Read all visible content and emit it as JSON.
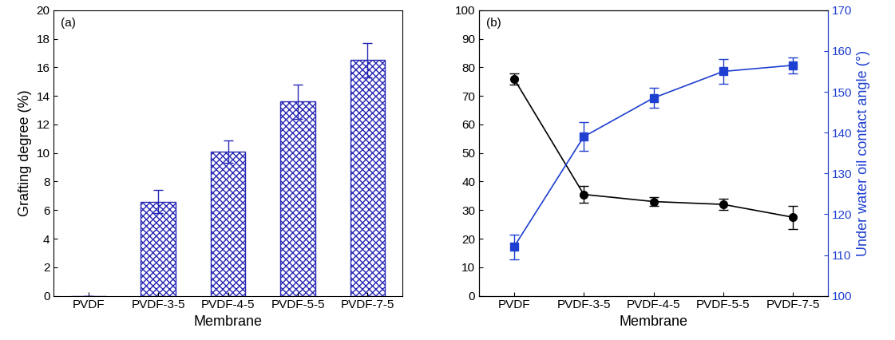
{
  "chart_data": [
    {
      "type": "bar",
      "annotation": "(a)",
      "x_label": "Membrane",
      "y_label": "Grafting degree (%)",
      "categories": [
        "PVDF",
        "PVDF-3-5",
        "PVDF-4-5",
        "PVDF-5-5",
        "PVDF-7-5"
      ],
      "values": [
        0,
        6.6,
        10.1,
        13.6,
        16.5
      ],
      "errors": [
        0,
        0.8,
        0.8,
        1.2,
        1.2
      ],
      "color": "#2828b4",
      "ylim": [
        0,
        20
      ],
      "yticks": [
        0,
        2,
        4,
        6,
        8,
        10,
        12,
        14,
        16,
        18,
        20
      ]
    },
    {
      "type": "line",
      "annotation": "(b)",
      "x_label": "Membrane",
      "y2_label": "Under water oil contact angle (°)",
      "categories": [
        "PVDF",
        "PVDF-3-5",
        "PVDF-4-5",
        "PVDF-5-5",
        "PVDF-7-5"
      ],
      "series": [
        {
          "color": "#000000",
          "marker": "circle",
          "values": [
            76,
            35.5,
            33,
            32,
            27.5
          ],
          "errors": [
            2,
            3,
            1.5,
            2,
            4
          ]
        },
        {
          "color": "#1f3fd0",
          "marker": "square",
          "axis": "y2",
          "values": [
            112,
            139,
            148.5,
            155,
            156.5
          ],
          "errors": [
            3,
            3.5,
            2.5,
            3,
            2
          ]
        }
      ],
      "ylim": [
        0,
        100
      ],
      "yticks": [
        0,
        10,
        20,
        30,
        40,
        50,
        60,
        70,
        80,
        90,
        100
      ],
      "y2lim": [
        100,
        170
      ],
      "y2ticks": [
        100,
        110,
        120,
        130,
        140,
        150,
        160,
        170
      ]
    }
  ]
}
